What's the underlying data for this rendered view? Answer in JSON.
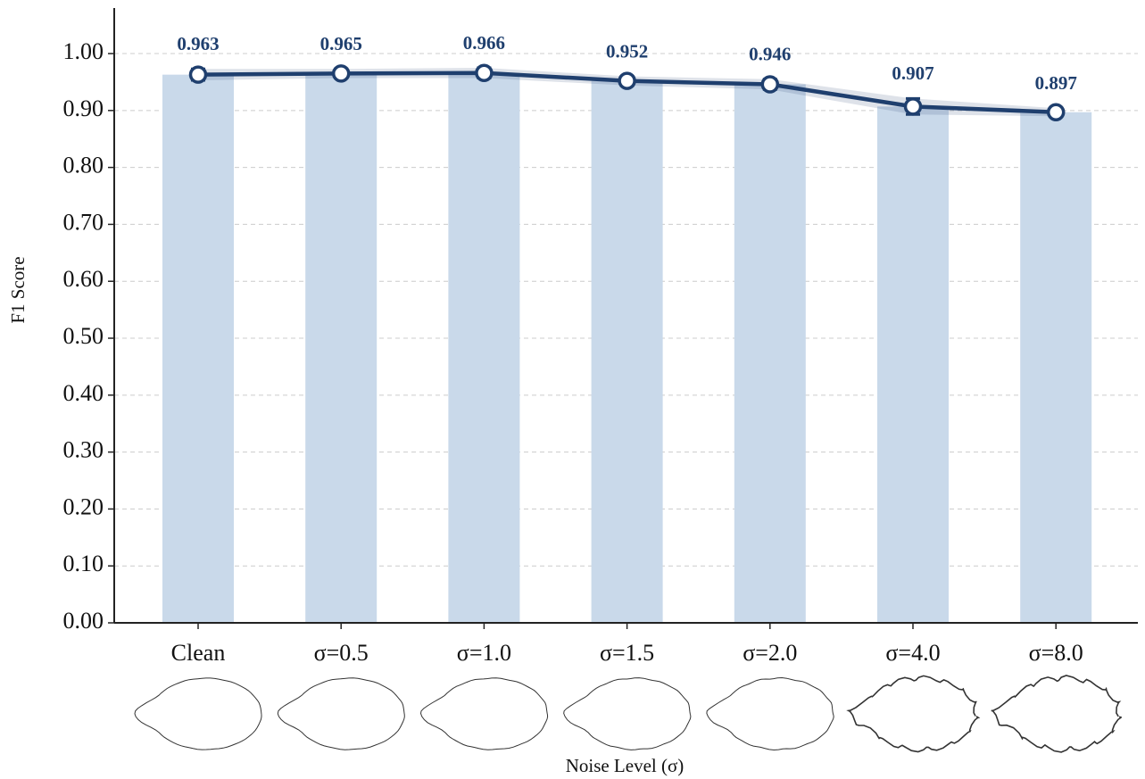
{
  "chart_data": {
    "type": "bar",
    "categories": [
      "Clean",
      "σ=0.5",
      "σ=1.0",
      "σ=1.5",
      "σ=2.0",
      "σ=4.0",
      "σ=8.0"
    ],
    "values": [
      0.963,
      0.965,
      0.966,
      0.952,
      0.946,
      0.907,
      0.897
    ],
    "errors": [
      0.01,
      0.008,
      0.009,
      0.008,
      0.009,
      0.014,
      0.007
    ],
    "color": "#c9d9ea",
    "line_color": "#1f3f6e",
    "xlabel": "Noise Level (σ)",
    "ylabel": "F1 Score",
    "ylim": [
      0,
      1.08
    ],
    "yticks": [
      {
        "value": 0,
        "label": "0.00"
      },
      {
        "value": 0.1,
        "label": "0.10"
      },
      {
        "value": 0.2,
        "label": "0.20"
      },
      {
        "value": 0.3,
        "label": "0.30"
      },
      {
        "value": 0.4,
        "label": "0.40"
      },
      {
        "value": 0.5,
        "label": "0.50"
      },
      {
        "value": 0.6,
        "label": "0.60"
      },
      {
        "value": 0.7,
        "label": "0.70"
      },
      {
        "value": 0.8,
        "label": "0.80"
      },
      {
        "value": 0.9,
        "label": "0.90"
      },
      {
        "value": 1.0,
        "label": "1.00"
      }
    ],
    "grid": true
  }
}
